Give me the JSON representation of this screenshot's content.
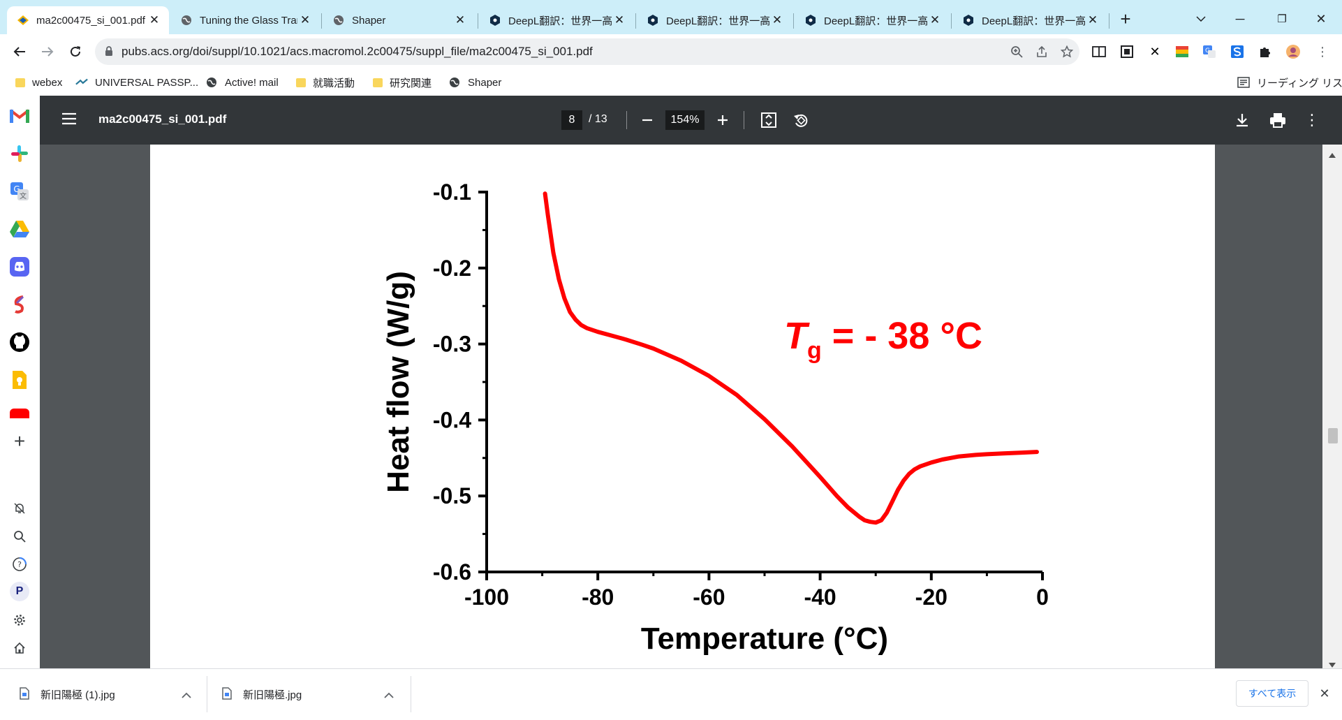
{
  "tabs": [
    {
      "title": "ma2c00475_si_001.pdf",
      "icon": "acs-icon",
      "active": true
    },
    {
      "title": "Tuning the Glass Trans",
      "icon": "globe-icon",
      "active": false
    },
    {
      "title": "Shaper",
      "icon": "globe-icon",
      "active": false
    },
    {
      "title": "DeepL翻訳：世界一高",
      "icon": "deepl-icon",
      "active": false
    },
    {
      "title": "DeepL翻訳：世界一高",
      "icon": "deepl-icon",
      "active": false
    },
    {
      "title": "DeepL翻訳：世界一高",
      "icon": "deepl-icon",
      "active": false
    },
    {
      "title": "DeepL翻訳：世界一高",
      "icon": "deepl-icon",
      "active": false
    }
  ],
  "address": {
    "url": "pubs.acs.org/doi/suppl/10.1021/acs.macromol.2c00475/suppl_file/ma2c00475_si_001.pdf"
  },
  "bookmarks": [
    {
      "label": "webex",
      "icon": "folder-icon"
    },
    {
      "label": "UNIVERSAL PASSP...",
      "icon": "universal-passport-icon"
    },
    {
      "label": "Active! mail",
      "icon": "globe-icon"
    },
    {
      "label": "就職活動",
      "icon": "folder-icon"
    },
    {
      "label": "研究関連",
      "icon": "folder-icon"
    },
    {
      "label": "Shaper",
      "icon": "globe-icon"
    }
  ],
  "reading_list": "リーディング リスト",
  "pdf": {
    "filename": "ma2c00475_si_001.pdf",
    "page_current": "8",
    "page_total": "/ 13",
    "zoom": "154%"
  },
  "sidebar": {
    "profile_letter": "P"
  },
  "downloads": {
    "items": [
      {
        "name": "新旧陽極 (1).jpg"
      },
      {
        "name": "新旧陽極.jpg"
      }
    ],
    "show_all": "すべて表示"
  },
  "colors": {
    "tabstrip": "#cdeef9",
    "pdf_toolbar": "#323639",
    "pdf_background": "#525659",
    "curve": "#ff0000"
  },
  "chart_data": {
    "type": "line",
    "xlabel": "Temperature (°C)",
    "ylabel": "Heat flow (W/g)",
    "xlim": [
      -100,
      0
    ],
    "ylim": [
      -0.6,
      -0.1
    ],
    "xticks": [
      "-100",
      "-80",
      "-60",
      "-40",
      "-20",
      "0"
    ],
    "yticks": [
      "-0.1",
      "-0.2",
      "-0.3",
      "-0.4",
      "-0.5",
      "-0.6"
    ],
    "annotation": {
      "symbol": "T",
      "subscript": "g",
      "text": " = - 38 °C"
    },
    "series": [
      {
        "color": "#ff0000",
        "x": [
          -89.5,
          -89,
          -88,
          -87,
          -86,
          -85,
          -84,
          -83,
          -82,
          -80,
          -78,
          -75,
          -72,
          -70,
          -65,
          -60,
          -55,
          -50,
          -45,
          -40,
          -37,
          -35,
          -33,
          -32,
          -31,
          -30,
          -29,
          -28,
          -27,
          -26,
          -25,
          -24,
          -23,
          -22,
          -20,
          -18,
          -15,
          -12,
          -10,
          -7,
          -4,
          -1
        ],
        "y": [
          -0.102,
          -0.13,
          -0.18,
          -0.215,
          -0.24,
          -0.258,
          -0.268,
          -0.275,
          -0.279,
          -0.284,
          -0.288,
          -0.294,
          -0.301,
          -0.306,
          -0.322,
          -0.342,
          -0.367,
          -0.399,
          -0.435,
          -0.475,
          -0.5,
          -0.515,
          -0.527,
          -0.532,
          -0.534,
          -0.535,
          -0.532,
          -0.522,
          -0.507,
          -0.492,
          -0.48,
          -0.471,
          -0.465,
          -0.461,
          -0.456,
          -0.452,
          -0.448,
          -0.446,
          -0.445,
          -0.444,
          -0.443,
          -0.442
        ]
      }
    ]
  }
}
